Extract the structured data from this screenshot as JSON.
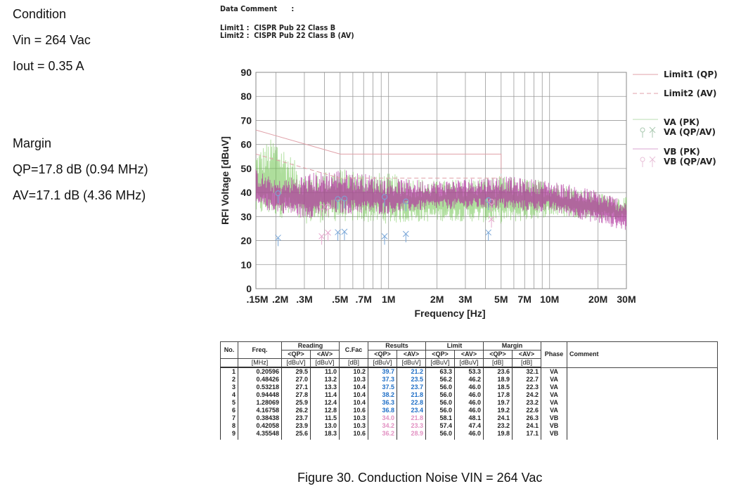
{
  "condition": {
    "title": "Condition",
    "vin": "Vin = 264 Vac",
    "iout": "Iout = 0.35 A"
  },
  "margin": {
    "title": "Margin",
    "qp": "QP=17.8 dB (0.94 MHz)",
    "av": "AV=17.1 dB (4.36 MHz)"
  },
  "header": {
    "data_comment": "Data Comment      :",
    "limit1": "Limit1 :  CISPR Pub 22 Class B",
    "limit2": "Limit2 :  CISPR Pub 22 Class B (AV)"
  },
  "caption": "Figure 30. Conduction Noise VIN = 264 Vac",
  "colors": {
    "limit": "#e0a0a8",
    "va": "#6cc24a",
    "vb": "#b0359e",
    "va_marker": "#7aa7d8",
    "vb_marker": "#e8a9cf",
    "grid": "#999999",
    "qp_va_text": "#1f6fc7",
    "qp_vb_text": "#e290c2"
  },
  "chart_data": {
    "type": "line",
    "title": "",
    "xlabel": "Frequency  [Hz]",
    "ylabel": "RFI Voltage  [dBuV]",
    "xscale": "log",
    "xlim": [
      0.15,
      30
    ],
    "ylim": [
      0,
      90
    ],
    "grid": true,
    "legend_placement": "right",
    "yticks": [
      0,
      10,
      20,
      30,
      40,
      50,
      60,
      70,
      80,
      90
    ],
    "xticks": [
      {
        "value": 0.15,
        "label": ".15M"
      },
      {
        "value": 0.2,
        "label": ".2M"
      },
      {
        "value": 0.3,
        "label": ".3M"
      },
      {
        "value": 0.5,
        "label": ".5M"
      },
      {
        "value": 0.7,
        "label": ".7M"
      },
      {
        "value": 1,
        "label": "1M"
      },
      {
        "value": 2,
        "label": "2M"
      },
      {
        "value": 3,
        "label": "3M"
      },
      {
        "value": 5,
        "label": "5M"
      },
      {
        "value": 7,
        "label": "7M"
      },
      {
        "value": 10,
        "label": "10M"
      },
      {
        "value": 20,
        "label": "20M"
      },
      {
        "value": 30,
        "label": "30M"
      }
    ],
    "gridlines_x": [
      0.2,
      0.3,
      0.4,
      0.5,
      0.6,
      0.7,
      0.8,
      0.9,
      1,
      2,
      3,
      4,
      5,
      6,
      7,
      8,
      9,
      10,
      20
    ],
    "legend": [
      {
        "label": "Limit1 (QP)",
        "style": "solid-limit"
      },
      {
        "label": "Limit2 (AV)",
        "style": "dashed-limit"
      },
      {
        "label": "VA (PK)",
        "style": "line-va"
      },
      {
        "label": "VA (QP/AV)",
        "style": "markers-va"
      },
      {
        "label": "VB (PK)",
        "style": "line-vb"
      },
      {
        "label": "VB (QP/AV)",
        "style": "markers-vb"
      }
    ],
    "series": [
      {
        "name": "Limit1 (QP)",
        "x": [
          0.15,
          0.5,
          0.5,
          5,
          5
        ],
        "y": [
          66,
          56,
          56,
          56,
          50
        ]
      },
      {
        "name": "Limit2 (AV)",
        "x": [
          0.15,
          0.5,
          0.5,
          5,
          5
        ],
        "y": [
          56,
          46,
          46,
          46,
          50
        ]
      },
      {
        "name": "VA (PK)",
        "envelope": {
          "x": [
            0.15,
            0.2,
            0.3,
            0.5,
            1,
            2,
            3,
            5,
            7,
            10,
            20,
            30
          ],
          "low": [
            30,
            30,
            27,
            28,
            27,
            28,
            28,
            27,
            28,
            30,
            29,
            28
          ],
          "high": [
            58,
            64,
            48,
            50,
            48,
            45,
            46,
            47,
            46,
            45,
            40,
            38
          ]
        }
      },
      {
        "name": "VB (PK)",
        "envelope": {
          "x": [
            0.15,
            0.2,
            0.3,
            0.5,
            1,
            2,
            3,
            5,
            7,
            10,
            20,
            30
          ],
          "low": [
            33,
            32,
            29,
            31,
            31,
            33,
            33,
            33,
            32,
            32,
            27,
            24
          ],
          "high": [
            50,
            45,
            48,
            50,
            46,
            45,
            46,
            47,
            46,
            45,
            41,
            37
          ]
        }
      },
      {
        "name": "VA (QP)",
        "x": [
          0.20596,
          0.48426,
          0.53218,
          0.94448,
          1.28069,
          4.16758
        ],
        "y": [
          39.7,
          37.3,
          37.5,
          38.2,
          36.3,
          36.8
        ]
      },
      {
        "name": "VA (AV)",
        "x": [
          0.20596,
          0.48426,
          0.53218,
          0.94448,
          1.28069,
          4.16758
        ],
        "y": [
          21.2,
          23.5,
          23.7,
          21.8,
          22.8,
          23.4
        ]
      },
      {
        "name": "VB (QP)",
        "x": [
          0.38438,
          0.42058,
          4.35548
        ],
        "y": [
          34.0,
          34.2,
          36.2
        ]
      },
      {
        "name": "VB (AV)",
        "x": [
          0.38438,
          0.42058,
          4.35548
        ],
        "y": [
          21.8,
          23.3,
          28.9
        ]
      }
    ]
  },
  "table": {
    "headers": {
      "no": "No.",
      "freq": "Freq.",
      "reading": "Reading",
      "cfac": "C.Fac",
      "results": "Results",
      "limit": "Limit",
      "margin": "Margin",
      "phase": "Phase",
      "comment": "Comment",
      "qp": "<QP>",
      "av": "<AV>",
      "unit_mhz": "[MHz]",
      "unit_dbuv": "[dBuV]",
      "unit_db": "[dB]"
    },
    "rows": [
      {
        "no": "1",
        "freq": "0.20596",
        "read_qp": "29.5",
        "read_av": "11.0",
        "cfac": "10.2",
        "res_qp": "39.7",
        "res_av": "21.2",
        "lim_qp": "63.3",
        "lim_av": "53.3",
        "mar_qp": "23.6",
        "mar_av": "32.1",
        "phase": "VA"
      },
      {
        "no": "2",
        "freq": "0.48426",
        "read_qp": "27.0",
        "read_av": "13.2",
        "cfac": "10.3",
        "res_qp": "37.3",
        "res_av": "23.5",
        "lim_qp": "56.2",
        "lim_av": "46.2",
        "mar_qp": "18.9",
        "mar_av": "22.7",
        "phase": "VA"
      },
      {
        "no": "3",
        "freq": "0.53218",
        "read_qp": "27.1",
        "read_av": "13.3",
        "cfac": "10.4",
        "res_qp": "37.5",
        "res_av": "23.7",
        "lim_qp": "56.0",
        "lim_av": "46.0",
        "mar_qp": "18.5",
        "mar_av": "22.3",
        "phase": "VA"
      },
      {
        "no": "4",
        "freq": "0.94448",
        "read_qp": "27.8",
        "read_av": "11.4",
        "cfac": "10.4",
        "res_qp": "38.2",
        "res_av": "21.8",
        "lim_qp": "56.0",
        "lim_av": "46.0",
        "mar_qp": "17.8",
        "mar_av": "24.2",
        "phase": "VA"
      },
      {
        "no": "5",
        "freq": "1.28069",
        "read_qp": "25.9",
        "read_av": "12.4",
        "cfac": "10.4",
        "res_qp": "36.3",
        "res_av": "22.8",
        "lim_qp": "56.0",
        "lim_av": "46.0",
        "mar_qp": "19.7",
        "mar_av": "23.2",
        "phase": "VA"
      },
      {
        "no": "6",
        "freq": "4.16758",
        "read_qp": "26.2",
        "read_av": "12.8",
        "cfac": "10.6",
        "res_qp": "36.8",
        "res_av": "23.4",
        "lim_qp": "56.0",
        "lim_av": "46.0",
        "mar_qp": "19.2",
        "mar_av": "22.6",
        "phase": "VA"
      },
      {
        "no": "7",
        "freq": "0.38438",
        "read_qp": "23.7",
        "read_av": "11.5",
        "cfac": "10.3",
        "res_qp": "34.0",
        "res_av": "21.8",
        "lim_qp": "58.1",
        "lim_av": "48.1",
        "mar_qp": "24.1",
        "mar_av": "26.3",
        "phase": "VB"
      },
      {
        "no": "8",
        "freq": "0.42058",
        "read_qp": "23.9",
        "read_av": "13.0",
        "cfac": "10.3",
        "res_qp": "34.2",
        "res_av": "23.3",
        "lim_qp": "57.4",
        "lim_av": "47.4",
        "mar_qp": "23.2",
        "mar_av": "24.1",
        "phase": "VB"
      },
      {
        "no": "9",
        "freq": "4.35548",
        "read_qp": "25.6",
        "read_av": "18.3",
        "cfac": "10.6",
        "res_qp": "36.2",
        "res_av": "28.9",
        "lim_qp": "56.0",
        "lim_av": "46.0",
        "mar_qp": "19.8",
        "mar_av": "17.1",
        "phase": "VB"
      }
    ]
  }
}
